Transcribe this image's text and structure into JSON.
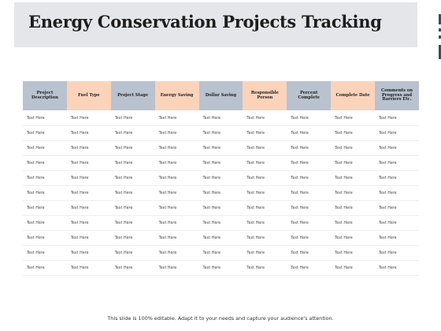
{
  "slide": {
    "title": "Energy Conservation Projects Tracking",
    "footer": "This slide is 100% editable. Adapt it to your needs and capture your audience's attention."
  },
  "colors": {
    "header_blue": "#b9c2cf",
    "header_peach": "#fbd3bb",
    "title_band": "#e4e6e9",
    "edge_marks": "#3a4a5c"
  },
  "table": {
    "headers": [
      {
        "label": "Project Description",
        "color": "blue"
      },
      {
        "label": "Fuel Type",
        "color": "peach"
      },
      {
        "label": "Project Stage",
        "color": "blue"
      },
      {
        "label": "Energy Saving",
        "color": "peach"
      },
      {
        "label": "Dollar Saving",
        "color": "blue"
      },
      {
        "label": "Responsible Person",
        "color": "peach"
      },
      {
        "label": "Percent Complete",
        "color": "blue"
      },
      {
        "label": "Complete Date",
        "color": "peach"
      },
      {
        "label": "Comments on Progress and Barriers Etc.",
        "color": "blue"
      }
    ],
    "rows": [
      [
        "Text Here",
        "Text Here",
        "Text Here",
        "Text Here",
        "Text Here",
        "Text Here",
        "Text Here",
        "Text Here",
        "Text Here"
      ],
      [
        "Text Here",
        "Text Here",
        "Text Here",
        "Text Here",
        "Text Here",
        "Text Here",
        "Text Here",
        "Text Here",
        "Text Here"
      ],
      [
        "Text Here",
        "Text Here",
        "Text Here",
        "Text Here",
        "Text Here",
        "Text Here",
        "Text Here",
        "Text Here",
        "Text Here"
      ],
      [
        "Text Here",
        "Text Here",
        "Text Here",
        "Text Here",
        "Text Here",
        "Text Here",
        "Text Here",
        "Text Here",
        "Text Here"
      ],
      [
        "Text Here",
        "Text Here",
        "Text Here",
        "Text Here",
        "Text Here",
        "Text Here",
        "Text Here",
        "Text Here",
        "Text Here"
      ],
      [
        "Text Here",
        "Text Here",
        "Text Here",
        "Text Here",
        "Text Here",
        "Text Here",
        "Text Here",
        "Text Here",
        "Text Here"
      ],
      [
        "Text Here",
        "Text Here",
        "Text Here",
        "Text Here",
        "Text Here",
        "Text Here",
        "Text Here",
        "Text Here",
        "Text Here"
      ],
      [
        "Text Here",
        "Text Here",
        "Text Here",
        "Text Here",
        "Text Here",
        "Text Here",
        "Text Here",
        "Text Here",
        "Text Here"
      ],
      [
        "Text Here",
        "Text Here",
        "Text Here",
        "Text Here",
        "Text Here",
        "Text Here",
        "Text Here",
        "Text Here",
        "Text Here"
      ],
      [
        "Text Here",
        "Text Here",
        "Text Here",
        "Text Here",
        "Text Here",
        "Text Here",
        "Text Here",
        "Text Here",
        "Text Here"
      ],
      [
        "Text Here",
        "Text Here",
        "Text Here",
        "Text Here",
        "Text Here",
        "Text Here",
        "Text Here",
        "Text Here",
        "Text Here"
      ]
    ]
  }
}
